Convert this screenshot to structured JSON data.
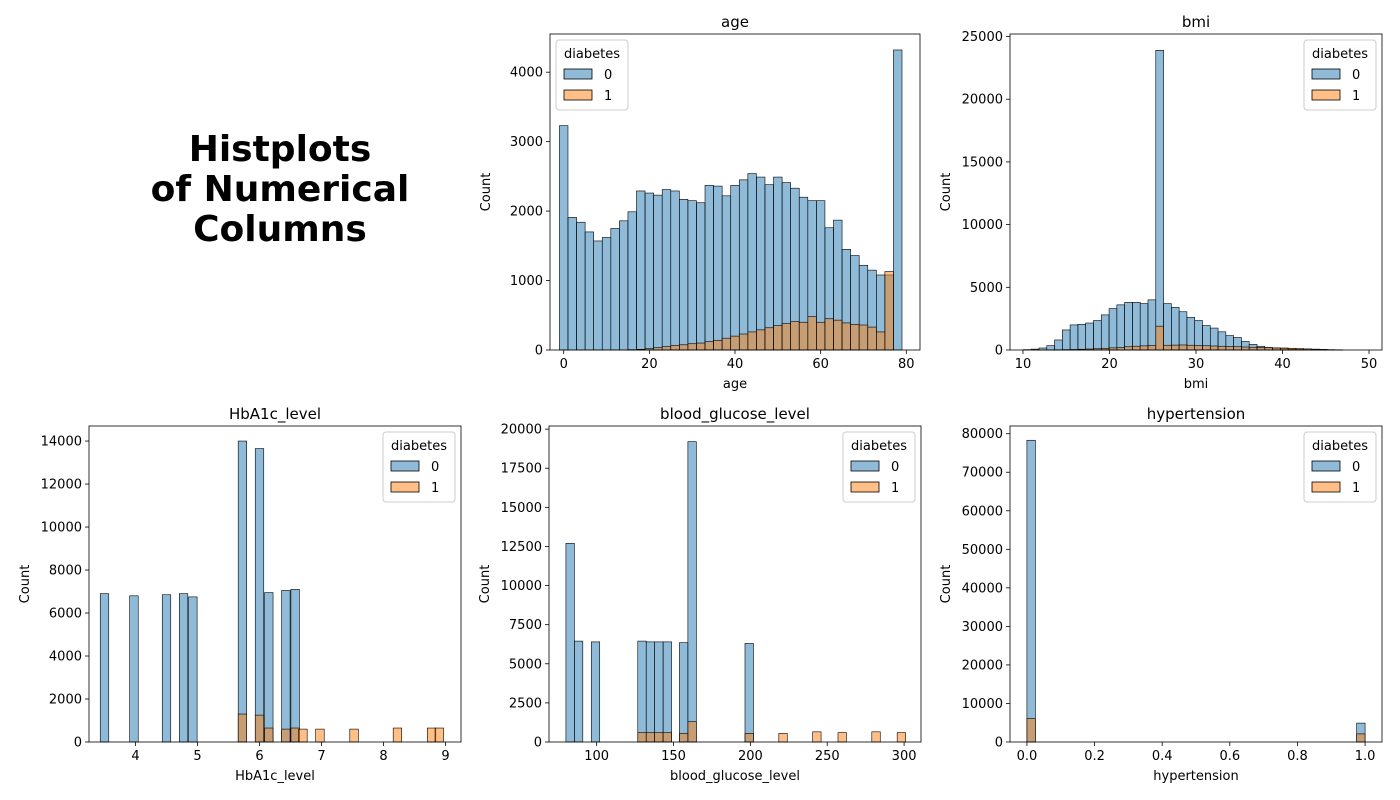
{
  "figure_title_lines": [
    "Histplots",
    "of Numerical",
    "Columns"
  ],
  "colors": {
    "class0": "#1f77b4",
    "class1": "#ff7f0e",
    "overlap": "#7f7f7f"
  },
  "chart_data": [
    {
      "type": "bar",
      "title": "age",
      "xlabel": "age",
      "ylabel": "Count",
      "xlim": [
        -3.2,
        83.2
      ],
      "ylim": [
        0,
        4550
      ],
      "xticks": [
        0,
        20,
        40,
        60,
        80
      ],
      "yticks": [
        0,
        1000,
        2000,
        3000,
        4000
      ],
      "bin_width": 2,
      "legend": {
        "title": "diabetes",
        "entries": [
          "0",
          "1"
        ],
        "placement": "upper left"
      },
      "series": [
        {
          "name": "0",
          "x": [
            0,
            2,
            4,
            6,
            8,
            10,
            12,
            14,
            16,
            18,
            20,
            22,
            24,
            26,
            28,
            30,
            32,
            34,
            36,
            38,
            40,
            42,
            44,
            46,
            48,
            50,
            52,
            54,
            56,
            58,
            60,
            62,
            64,
            66,
            68,
            70,
            72,
            74,
            76,
            78
          ],
          "values": [
            3230,
            1910,
            1840,
            1700,
            1570,
            1620,
            1750,
            1860,
            1990,
            2290,
            2260,
            2230,
            2310,
            2290,
            2170,
            2150,
            2120,
            2370,
            2360,
            2220,
            2370,
            2450,
            2540,
            2490,
            2380,
            2490,
            2410,
            2330,
            2200,
            2150,
            2150,
            1760,
            1870,
            1450,
            1360,
            1220,
            1150,
            1080,
            1080,
            4320
          ]
        },
        {
          "name": "1",
          "x": [
            0,
            2,
            4,
            6,
            8,
            10,
            12,
            14,
            16,
            18,
            20,
            22,
            24,
            26,
            28,
            30,
            32,
            34,
            36,
            38,
            40,
            42,
            44,
            46,
            48,
            50,
            52,
            54,
            56,
            58,
            60,
            62,
            64,
            66,
            68,
            70,
            72,
            74,
            76,
            78
          ],
          "values": [
            0,
            0,
            0,
            0,
            0,
            0,
            0,
            0,
            5,
            10,
            20,
            35,
            50,
            65,
            75,
            90,
            100,
            120,
            140,
            170,
            200,
            230,
            260,
            290,
            320,
            350,
            380,
            410,
            400,
            480,
            400,
            450,
            430,
            390,
            370,
            360,
            330,
            260,
            1130,
            0
          ]
        }
      ]
    },
    {
      "type": "bar",
      "title": "bmi",
      "xlabel": "bmi",
      "ylabel": "Count",
      "xlim": [
        8.5,
        51.5
      ],
      "ylim": [
        0,
        25200
      ],
      "xticks": [
        10,
        20,
        30,
        40,
        50
      ],
      "yticks": [
        0,
        5000,
        10000,
        15000,
        20000,
        25000
      ],
      "bin_width": 0.9,
      "legend": {
        "title": "diabetes",
        "entries": [
          "0",
          "1"
        ],
        "placement": "upper right"
      },
      "series": [
        {
          "name": "0",
          "x": [
            10.5,
            11.4,
            12.3,
            13.2,
            14.1,
            15.0,
            15.9,
            16.8,
            17.7,
            18.6,
            19.5,
            20.4,
            21.3,
            22.2,
            23.1,
            24.0,
            24.9,
            25.8,
            26.7,
            27.6,
            28.5,
            29.4,
            30.3,
            31.2,
            32.1,
            33.0,
            33.9,
            34.8,
            35.7,
            36.6,
            37.5,
            38.4,
            39.3,
            40.2,
            41.1,
            42.0,
            42.9,
            43.8,
            44.7,
            45.6,
            46.5
          ],
          "values": [
            30,
            70,
            160,
            350,
            800,
            1600,
            2000,
            2050,
            2150,
            2350,
            2800,
            3300,
            3600,
            3800,
            3800,
            3700,
            4000,
            23900,
            3700,
            3400,
            3050,
            2600,
            2350,
            1950,
            1750,
            1450,
            1150,
            1000,
            680,
            450,
            300,
            200,
            150,
            100,
            70,
            50,
            40,
            30,
            20,
            10,
            5
          ]
        },
        {
          "name": "1",
          "x": [
            10.5,
            11.4,
            12.3,
            13.2,
            14.1,
            15.0,
            15.9,
            16.8,
            17.7,
            18.6,
            19.5,
            20.4,
            21.3,
            22.2,
            23.1,
            24.0,
            24.9,
            25.8,
            26.7,
            27.6,
            28.5,
            29.4,
            30.3,
            31.2,
            32.1,
            33.0,
            33.9,
            34.8,
            35.7,
            36.6,
            37.5,
            38.4,
            39.3,
            40.2,
            41.1,
            42.0,
            42.9,
            43.8,
            44.7,
            45.6,
            46.5
          ],
          "values": [
            0,
            0,
            0,
            10,
            20,
            30,
            40,
            60,
            80,
            100,
            130,
            170,
            210,
            260,
            300,
            330,
            360,
            1900,
            380,
            390,
            400,
            380,
            360,
            340,
            320,
            300,
            280,
            260,
            240,
            220,
            200,
            180,
            170,
            160,
            140,
            120,
            90,
            70,
            50,
            30,
            20
          ]
        }
      ]
    },
    {
      "type": "bar",
      "title": "HbA1c_level",
      "xlabel": "HbA1c_level",
      "ylabel": "Count",
      "xlim": [
        3.25,
        9.25
      ],
      "ylim": [
        0,
        14700
      ],
      "xticks": [
        4,
        5,
        6,
        7,
        8,
        9
      ],
      "yticks": [
        0,
        2000,
        4000,
        6000,
        8000,
        10000,
        12000,
        14000
      ],
      "bin_width": 0.1375,
      "legend": {
        "title": "diabetes",
        "entries": [
          "0",
          "1"
        ],
        "placement": "upper right"
      },
      "series": [
        {
          "name": "0",
          "x": [
            3.5,
            3.975,
            4.5,
            4.775,
            4.925,
            5.725,
            6.0,
            6.15,
            6.425,
            6.575
          ],
          "values": [
            6900,
            6800,
            6850,
            6900,
            6750,
            14000,
            13650,
            6950,
            7050,
            7100
          ]
        },
        {
          "name": "1",
          "x": [
            5.725,
            6.0,
            6.15,
            6.425,
            6.575,
            6.7,
            6.975,
            7.525,
            8.225,
            8.775,
            8.9
          ],
          "values": [
            1300,
            1250,
            650,
            600,
            650,
            600,
            600,
            600,
            650,
            650,
            650
          ]
        }
      ]
    },
    {
      "type": "bar",
      "title": "blood_glucose_level",
      "xlabel": "blood_glucose_level",
      "ylabel": "Count",
      "xlim": [
        69,
        311
      ],
      "ylim": [
        0,
        20200
      ],
      "xticks": [
        100,
        150,
        200,
        250,
        300
      ],
      "yticks": [
        0,
        2500,
        5000,
        7500,
        10000,
        12500,
        15000,
        17500,
        20000
      ],
      "bin_width": 5.5,
      "legend": {
        "title": "diabetes",
        "entries": [
          "0",
          "1"
        ],
        "placement": "upper right"
      },
      "series": [
        {
          "name": "0",
          "x": [
            82.75,
            88.25,
            99.25,
            129.5,
            135.0,
            140.5,
            146.0,
            156.6,
            162.1,
            199.25
          ],
          "values": [
            12700,
            6450,
            6400,
            6450,
            6400,
            6400,
            6400,
            6350,
            19200,
            6300
          ]
        },
        {
          "name": "1",
          "x": [
            129.5,
            135.0,
            140.5,
            146.0,
            156.6,
            162.1,
            199.25,
            221.25,
            243.25,
            259.75,
            281.75,
            298.25
          ],
          "values": [
            600,
            600,
            600,
            600,
            550,
            1300,
            550,
            550,
            650,
            600,
            650,
            600
          ]
        }
      ]
    },
    {
      "type": "bar",
      "title": "hypertension",
      "xlabel": "hypertension",
      "ylabel": "Count",
      "xlim": [
        -0.05,
        1.05
      ],
      "ylim": [
        0,
        82000
      ],
      "xticks": [
        "0.0",
        "0.2",
        "0.4",
        "0.6",
        "0.8",
        "1.0"
      ],
      "yticks": [
        0,
        10000,
        20000,
        30000,
        40000,
        50000,
        60000,
        70000,
        80000
      ],
      "bin_width": 0.025,
      "legend": {
        "title": "diabetes",
        "entries": [
          "0",
          "1"
        ],
        "placement": "upper right"
      },
      "series": [
        {
          "name": "0",
          "x": [
            0.0125,
            0.9875
          ],
          "values": [
            78300,
            4900
          ]
        },
        {
          "name": "1",
          "x": [
            0.0125,
            0.9875
          ],
          "values": [
            6100,
            2100
          ]
        }
      ]
    }
  ]
}
